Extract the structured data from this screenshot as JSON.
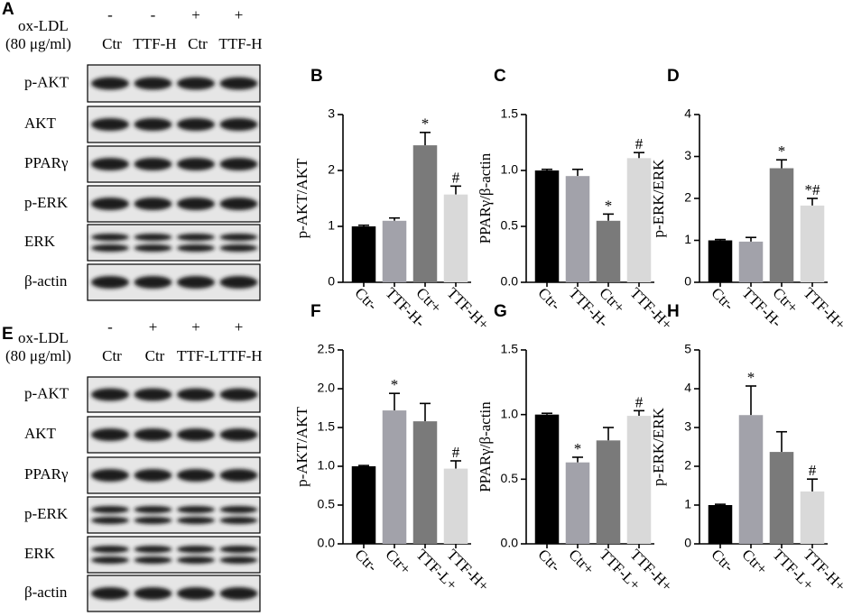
{
  "blot_panels": [
    {
      "panel": "A",
      "treatment_label": "ox-LDL",
      "dose_label": "(80 μg/ml)",
      "treatment": [
        "-",
        "-",
        "+",
        "+"
      ],
      "groups": [
        "Ctr",
        "TTF-H",
        "Ctr",
        "TTF-H"
      ],
      "rows": [
        "p-AKT",
        "AKT",
        "PPARγ",
        "p-ERK",
        "ERK",
        "β-actin"
      ]
    },
    {
      "panel": "E",
      "treatment_label": "ox-LDL",
      "dose_label": "(80 μg/ml)",
      "treatment": [
        "-",
        "+",
        "+",
        "+"
      ],
      "groups": [
        "Ctr",
        "Ctr",
        "TTF-L",
        "TTF-H"
      ],
      "rows": [
        "p-AKT",
        "AKT",
        "PPARγ",
        "p-ERK",
        "ERK",
        "β-actin"
      ]
    }
  ],
  "chart_data": [
    {
      "type": "bar",
      "panel": "B",
      "ylabel": "p-AKT/AKT",
      "categories": [
        "Ctr-",
        "TTF-H-",
        "Ctr+",
        "TTF-H+"
      ],
      "values": [
        1.0,
        1.1,
        2.45,
        1.57
      ],
      "errors": [
        0.02,
        0.05,
        0.23,
        0.15
      ],
      "annotations": [
        null,
        null,
        "*",
        "#"
      ],
      "colors": [
        "#000000",
        "#a2a2aa",
        "#7a7a7a",
        "#d9d9d9"
      ],
      "ylim": [
        0,
        3
      ],
      "yticks": [
        0,
        1,
        2,
        3
      ]
    },
    {
      "type": "bar",
      "panel": "C",
      "ylabel": "PPARγ/β-actin",
      "categories": [
        "Ctr-",
        "TTF-H-",
        "Ctr+",
        "TTF-H+"
      ],
      "values": [
        1.0,
        0.95,
        0.55,
        1.11
      ],
      "errors": [
        0.01,
        0.06,
        0.06,
        0.05
      ],
      "annotations": [
        null,
        null,
        "*",
        "#"
      ],
      "colors": [
        "#000000",
        "#a2a2aa",
        "#7a7a7a",
        "#d9d9d9"
      ],
      "ylim": [
        0,
        1.5
      ],
      "yticks": [
        {
          "value": 0,
          "label": "0.0"
        },
        0.5,
        {
          "value": 1,
          "label": "1.0"
        },
        1.5
      ]
    },
    {
      "type": "bar",
      "panel": "D",
      "ylabel": "p-ERK/ERK",
      "categories": [
        "Ctr-",
        "TTF-H-",
        "Ctr+",
        "TTF-H+"
      ],
      "values": [
        1.0,
        0.97,
        2.72,
        1.83
      ],
      "errors": [
        0.02,
        0.1,
        0.2,
        0.17
      ],
      "annotations": [
        null,
        null,
        "*",
        "*#"
      ],
      "colors": [
        "#000000",
        "#a2a2aa",
        "#7a7a7a",
        "#d9d9d9"
      ],
      "ylim": [
        0,
        4
      ],
      "yticks": [
        0,
        1,
        2,
        3,
        4
      ]
    },
    {
      "type": "bar",
      "panel": "F",
      "ylabel": "p-AKT/AKT",
      "categories": [
        "Ctr-",
        "Ctr+",
        "TTF-L+",
        "TTF-H+"
      ],
      "values": [
        1.0,
        1.72,
        1.58,
        0.97
      ],
      "errors": [
        0.01,
        0.22,
        0.23,
        0.1
      ],
      "annotations": [
        null,
        "*",
        null,
        "#"
      ],
      "colors": [
        "#000000",
        "#a2a2aa",
        "#7a7a7a",
        "#d9d9d9"
      ],
      "ylim": [
        0,
        2.5
      ],
      "yticks": [
        {
          "value": 0,
          "label": "0.0"
        },
        0.5,
        {
          "value": 1,
          "label": "1.0"
        },
        1.5,
        {
          "value": 2,
          "label": "2.0"
        },
        2.5
      ]
    },
    {
      "type": "bar",
      "panel": "G",
      "ylabel": "PPARγ/β-actin",
      "categories": [
        "Ctr-",
        "Ctr+",
        "TTF-L+",
        "TTF-H+"
      ],
      "values": [
        1.0,
        0.63,
        0.8,
        0.99
      ],
      "errors": [
        0.01,
        0.04,
        0.1,
        0.04
      ],
      "annotations": [
        null,
        "*",
        null,
        "#"
      ],
      "colors": [
        "#000000",
        "#a2a2aa",
        "#7a7a7a",
        "#d9d9d9"
      ],
      "ylim": [
        0,
        1.5
      ],
      "yticks": [
        {
          "value": 0,
          "label": "0.0"
        },
        0.5,
        {
          "value": 1,
          "label": "1.0"
        },
        1.5
      ]
    },
    {
      "type": "bar",
      "panel": "H",
      "ylabel": "p-ERK/ERK",
      "categories": [
        "Ctr-",
        "Ctr+",
        "TTF-L+",
        "TTF-H+"
      ],
      "values": [
        1.0,
        3.32,
        2.37,
        1.35
      ],
      "errors": [
        0.02,
        0.75,
        0.52,
        0.32
      ],
      "annotations": [
        null,
        "*",
        null,
        "#"
      ],
      "colors": [
        "#000000",
        "#a2a2aa",
        "#7a7a7a",
        "#d9d9d9"
      ],
      "ylim": [
        0,
        5
      ],
      "yticks": [
        0,
        1,
        2,
        3,
        4,
        5
      ]
    }
  ]
}
